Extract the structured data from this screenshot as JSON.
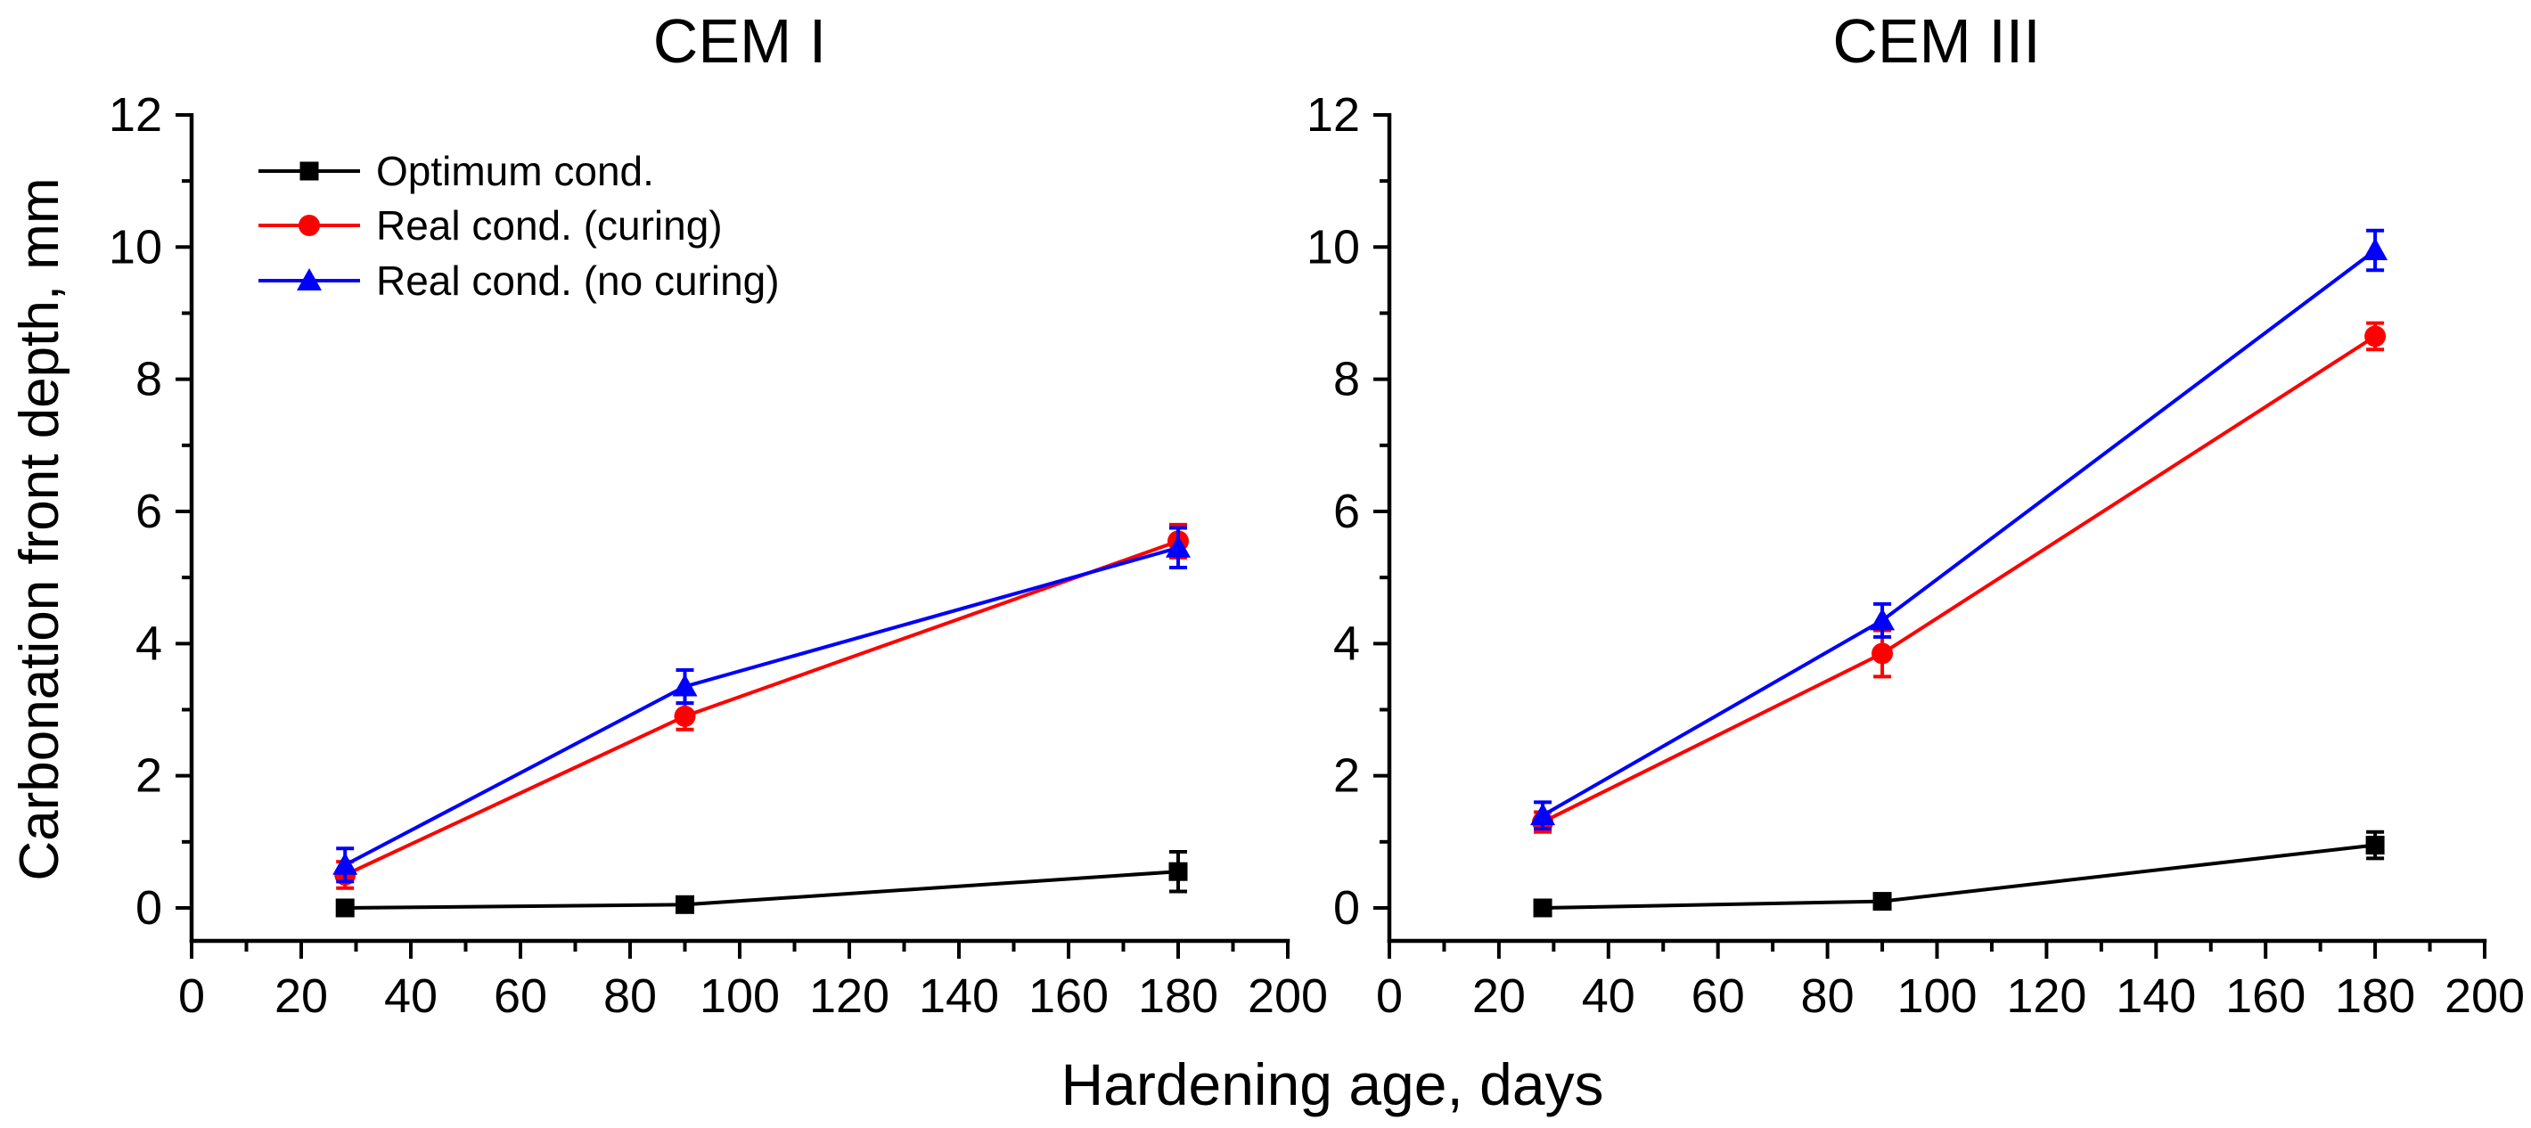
{
  "figure": {
    "background": "#ffffff",
    "text_color": "#000000"
  },
  "chart_data": [
    {
      "type": "line",
      "title": "CEM I",
      "xlabel": "Hardening age, days",
      "ylabel": "Carbonation front depth, mm",
      "x": [
        28,
        90,
        180
      ],
      "xlim": [
        0,
        200
      ],
      "ylim": [
        0,
        12
      ],
      "xtick_step": 20,
      "xtick_minor_step": 10,
      "ytick_step": 2,
      "ytick_minor_step": 1,
      "grid": "off",
      "legend_position": "upper-left",
      "legend_visible": true,
      "series": [
        {
          "name": "Optimum cond.",
          "marker": "square",
          "color": "#000000",
          "values": [
            0.0,
            0.05,
            0.55
          ],
          "errors": [
            0,
            0,
            0.3
          ]
        },
        {
          "name": "Real cond. (curing)",
          "marker": "circle",
          "color": "#ff0000",
          "values": [
            0.5,
            2.9,
            5.55
          ],
          "errors": [
            0.2,
            0.2,
            0.25
          ]
        },
        {
          "name": "Real cond. (no curing)",
          "marker": "triangle",
          "color": "#0000ff",
          "values": [
            0.65,
            3.35,
            5.45
          ],
          "errors": [
            0.25,
            0.25,
            0.3
          ]
        }
      ]
    },
    {
      "type": "line",
      "title": "CEM III",
      "xlabel": "Hardening age, days",
      "ylabel": "Carbonation front depth, mm",
      "x": [
        28,
        90,
        180
      ],
      "xlim": [
        0,
        200
      ],
      "ylim": [
        0,
        12
      ],
      "xtick_step": 20,
      "xtick_minor_step": 10,
      "ytick_step": 2,
      "ytick_minor_step": 1,
      "grid": "off",
      "legend_position": "none",
      "legend_visible": false,
      "series": [
        {
          "name": "Optimum cond.",
          "marker": "square",
          "color": "#000000",
          "values": [
            0.0,
            0.1,
            0.95
          ],
          "errors": [
            0,
            0,
            0.2
          ]
        },
        {
          "name": "Real cond. (curing)",
          "marker": "circle",
          "color": "#ff0000",
          "values": [
            1.3,
            3.85,
            8.65
          ],
          "errors": [
            0.15,
            0.35,
            0.2
          ]
        },
        {
          "name": "Real cond. (no curing)",
          "marker": "triangle",
          "color": "#0000ff",
          "values": [
            1.4,
            4.35,
            9.95
          ],
          "errors": [
            0.2,
            0.25,
            0.3
          ]
        }
      ]
    }
  ]
}
